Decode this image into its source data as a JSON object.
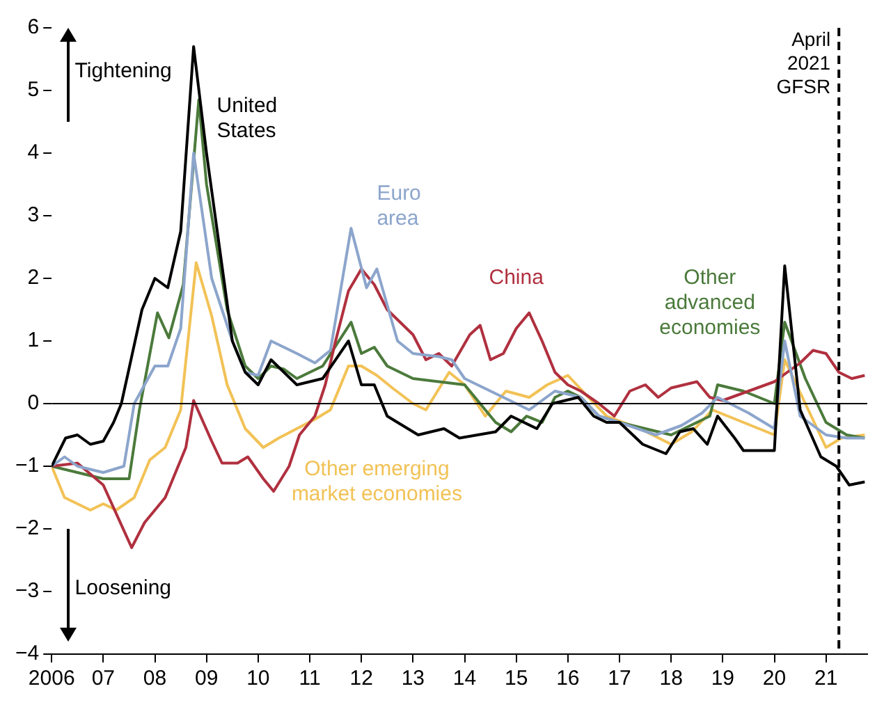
{
  "chart_data": {
    "type": "line",
    "xlim": [
      2006,
      2021.8
    ],
    "xticks": [
      {
        "value": 2006,
        "label": "2006"
      },
      {
        "value": 2007,
        "label": "07"
      },
      {
        "value": 2008,
        "label": "08"
      },
      {
        "value": 2009,
        "label": "09"
      },
      {
        "value": 2010,
        "label": "10"
      },
      {
        "value": 2011,
        "label": "11"
      },
      {
        "value": 2012,
        "label": "12"
      },
      {
        "value": 2013,
        "label": "13"
      },
      {
        "value": 2014,
        "label": "14"
      },
      {
        "value": 2015,
        "label": "15"
      },
      {
        "value": 2016,
        "label": "16"
      },
      {
        "value": 2017,
        "label": "17"
      },
      {
        "value": 2018,
        "label": "18"
      },
      {
        "value": 2019,
        "label": "19"
      },
      {
        "value": 2020,
        "label": "20"
      },
      {
        "value": 2021,
        "label": "21"
      }
    ],
    "ylim": [
      -4,
      6
    ],
    "yticks": [
      {
        "value": -4,
        "label": "−4"
      },
      {
        "value": -3,
        "label": "−3"
      },
      {
        "value": -2,
        "label": "−2"
      },
      {
        "value": -1,
        "label": "−1"
      },
      0,
      1,
      2,
      3,
      4,
      5,
      6
    ],
    "grid": false,
    "legend": false,
    "marker": "none",
    "line_style": "solid",
    "series": [
      {
        "name": "United States",
        "color": "#000000",
        "x": [
          2006,
          2006.27,
          2006.5,
          2006.75,
          2007,
          2007.2,
          2007.35,
          2007.75,
          2008,
          2008.25,
          2008.5,
          2008.75,
          2009,
          2009.5,
          2009.75,
          2010,
          2010.25,
          2010.5,
          2010.75,
          2011,
          2011.25,
          2011.75,
          2012,
          2012.25,
          2012.5,
          2013.1,
          2013.6,
          2013.9,
          2014.6,
          2014.9,
          2015.4,
          2015.7,
          2016.2,
          2016.5,
          2016.75,
          2017,
          2017.45,
          2017.9,
          2018.17,
          2018.43,
          2018.7,
          2018.9,
          2019.23,
          2019.4,
          2020,
          2020.2,
          2020.5,
          2020.9,
          2021.2,
          2021.45,
          2021.75
        ],
        "values": [
          -1.0,
          -0.55,
          -0.5,
          -0.65,
          -0.6,
          -0.3,
          0,
          1.5,
          2.0,
          1.85,
          2.75,
          5.7,
          4.0,
          1.0,
          0.5,
          0.3,
          0.7,
          0.5,
          0.3,
          0.35,
          0.4,
          1.0,
          0.3,
          0.3,
          -0.2,
          -0.5,
          -0.4,
          -0.55,
          -0.45,
          -0.2,
          -0.4,
          0,
          0.1,
          -0.2,
          -0.3,
          -0.3,
          -0.65,
          -0.8,
          -0.45,
          -0.4,
          -0.65,
          -0.2,
          -0.55,
          -0.75,
          -0.75,
          2.2,
          -0.1,
          -0.85,
          -1.0,
          -1.3,
          -1.25
        ]
      },
      {
        "name": "Euro area",
        "color": "#8ca5cc",
        "x": [
          2006,
          2006.25,
          2006.5,
          2007,
          2007.4,
          2007.6,
          2008,
          2008.25,
          2008.5,
          2008.75,
          2009.1,
          2009.5,
          2009.75,
          2010,
          2010.25,
          2010.75,
          2011.1,
          2011.4,
          2011.8,
          2012.1,
          2012.3,
          2012.7,
          2013,
          2013.5,
          2013.75,
          2014,
          2014.5,
          2015,
          2015.25,
          2015.75,
          2016,
          2016.25,
          2016.6,
          2017,
          2017.7,
          2018.2,
          2018.6,
          2018.9,
          2019.5,
          2020,
          2020.2,
          2020.5,
          2021,
          2021.4,
          2021.75
        ],
        "values": [
          -1.0,
          -0.85,
          -1.0,
          -1.1,
          -1.0,
          0,
          0.6,
          0.6,
          1.2,
          4.0,
          2.0,
          1.0,
          0.5,
          0.45,
          1.0,
          0.8,
          0.65,
          0.85,
          2.8,
          1.85,
          2.15,
          1.0,
          0.8,
          0.75,
          0.7,
          0.4,
          0.2,
          0,
          -0.1,
          0.2,
          0.15,
          0.1,
          -0.2,
          -0.3,
          -0.5,
          -0.35,
          -0.15,
          0.1,
          -0.15,
          -0.4,
          1.0,
          -0.2,
          -0.5,
          -0.55,
          -0.55
        ]
      },
      {
        "name": "China",
        "color": "#b0303f",
        "x": [
          2006,
          2006.5,
          2007,
          2007.55,
          2007.8,
          2008.2,
          2008.6,
          2008.75,
          2009.1,
          2009.3,
          2009.6,
          2009.8,
          2010.1,
          2010.3,
          2010.6,
          2010.8,
          2011.1,
          2011.3,
          2011.5,
          2011.75,
          2012,
          2012.25,
          2012.5,
          2012.75,
          2013,
          2013.25,
          2013.5,
          2013.75,
          2014.1,
          2014.3,
          2014.5,
          2014.75,
          2015,
          2015.25,
          2015.5,
          2015.75,
          2016,
          2016.25,
          2016.6,
          2016.9,
          2017.2,
          2017.5,
          2017.75,
          2018,
          2018.5,
          2018.75,
          2019,
          2019.5,
          2020,
          2020.5,
          2020.75,
          2021,
          2021.25,
          2021.5,
          2021.75
        ],
        "values": [
          -1.0,
          -0.95,
          -1.3,
          -2.3,
          -1.9,
          -1.5,
          -0.7,
          0.05,
          -0.6,
          -0.95,
          -0.95,
          -0.85,
          -1.2,
          -1.4,
          -1.0,
          -0.5,
          -0.2,
          0.3,
          1.0,
          1.8,
          2.15,
          1.9,
          1.5,
          1.3,
          1.1,
          0.7,
          0.8,
          0.6,
          1.1,
          1.25,
          0.7,
          0.8,
          1.2,
          1.45,
          1.0,
          0.5,
          0.3,
          0.2,
          0,
          -0.2,
          0.2,
          0.3,
          0.1,
          0.25,
          0.35,
          0.1,
          0.05,
          0.2,
          0.35,
          0.65,
          0.85,
          0.8,
          0.5,
          0.4,
          0.45
        ]
      },
      {
        "name": "Other advanced economies",
        "color": "#4b7a3b",
        "x": [
          2006,
          2006.5,
          2007,
          2007.5,
          2007.7,
          2008.05,
          2008.27,
          2008.55,
          2008.85,
          2009,
          2009.4,
          2009.75,
          2010,
          2010.25,
          2010.5,
          2010.75,
          2011,
          2011.25,
          2011.8,
          2012,
          2012.25,
          2012.5,
          2013,
          2013.5,
          2014,
          2014.3,
          2014.6,
          2014.9,
          2015.2,
          2015.5,
          2015.75,
          2016,
          2016.25,
          2016.6,
          2017,
          2017.5,
          2018,
          2018.5,
          2018.75,
          2018.9,
          2019.4,
          2020,
          2020.2,
          2020.6,
          2021,
          2021.4,
          2021.75
        ],
        "values": [
          -1.0,
          -1.1,
          -1.2,
          -1.2,
          -0.1,
          1.45,
          1.05,
          1.9,
          4.85,
          3.5,
          1.5,
          0.6,
          0.4,
          0.6,
          0.55,
          0.4,
          0.5,
          0.6,
          1.3,
          0.8,
          0.9,
          0.6,
          0.4,
          0.35,
          0.3,
          0,
          -0.3,
          -0.45,
          -0.2,
          -0.3,
          0.1,
          0.2,
          0.1,
          -0.2,
          -0.3,
          -0.4,
          -0.5,
          -0.3,
          -0.2,
          0.3,
          0.2,
          0,
          1.3,
          0.4,
          -0.3,
          -0.5,
          -0.55
        ]
      },
      {
        "name": "Other emerging market economies",
        "color": "#f2c256",
        "x": [
          2006,
          2006.25,
          2006.75,
          2007,
          2007.25,
          2007.6,
          2007.9,
          2008.2,
          2008.5,
          2008.8,
          2009.1,
          2009.4,
          2009.75,
          2010.1,
          2010.4,
          2010.75,
          2011.1,
          2011.4,
          2011.75,
          2012,
          2012.3,
          2012.6,
          2013,
          2013.25,
          2013.7,
          2014,
          2014.4,
          2014.8,
          2015.25,
          2015.6,
          2016,
          2016.4,
          2016.75,
          2017.4,
          2018,
          2018.4,
          2018.8,
          2019.4,
          2020,
          2020.2,
          2020.6,
          2021,
          2021.3,
          2021.75
        ],
        "values": [
          -1.0,
          -1.5,
          -1.7,
          -1.6,
          -1.7,
          -1.5,
          -0.9,
          -0.7,
          -0.1,
          2.25,
          1.4,
          0.3,
          -0.4,
          -0.7,
          -0.55,
          -0.4,
          -0.25,
          -0.1,
          0.6,
          0.6,
          0.45,
          0.25,
          0,
          -0.1,
          0.5,
          0.3,
          -0.2,
          0.2,
          0.1,
          0.3,
          0.45,
          0.1,
          -0.2,
          -0.4,
          -0.65,
          -0.45,
          -0.1,
          -0.3,
          -0.5,
          0.7,
          0,
          -0.7,
          -0.55,
          -0.5
        ]
      }
    ],
    "ref_lines": [
      {
        "axis": "y",
        "value": 0,
        "color": "#000000",
        "line_style": "solid"
      },
      {
        "axis": "x",
        "value": 2021.25,
        "label": "April 2021 GFSR",
        "color": "#000000",
        "line_style": "dashed"
      }
    ],
    "annotations": [
      "Tightening",
      "Loosening"
    ]
  }
}
